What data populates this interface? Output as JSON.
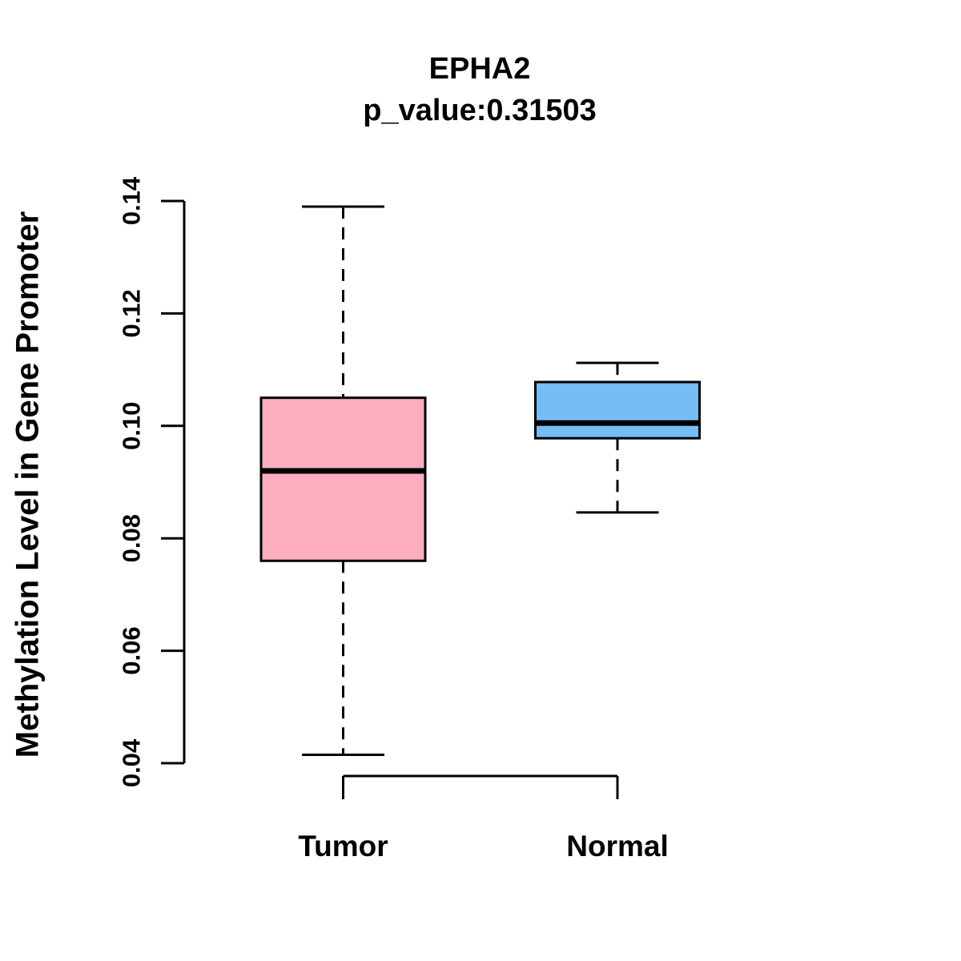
{
  "chart": {
    "title": "EPHA2",
    "subtitle": "p_value:0.31503",
    "ylabel": "Methylation Level in Gene Promoter"
  },
  "chart_data": {
    "type": "boxplot",
    "title": "EPHA2",
    "subtitle": "p_value:0.31503",
    "xlabel": "",
    "ylabel": "Methylation Level in Gene Promoter",
    "categories": [
      "Tumor",
      "Normal"
    ],
    "ylim": [
      0.04,
      0.14
    ],
    "ytick_labels": [
      "0.04",
      "0.06",
      "0.08",
      "0.10",
      "0.12",
      "0.14"
    ],
    "grid": "off",
    "legend": "none",
    "series": [
      {
        "name": "Tumor",
        "box_color": "#FCAEC0",
        "whisker_low": 0.0415,
        "q1": 0.076,
        "median": 0.092,
        "q3": 0.105,
        "whisker_high": 0.139
      },
      {
        "name": "Normal",
        "box_color": "#74BDF6",
        "whisker_low": 0.0846,
        "q1": 0.0978,
        "median": 0.1005,
        "q3": 0.1078,
        "whisker_high": 0.1112
      }
    ],
    "line_color": "#000000"
  }
}
